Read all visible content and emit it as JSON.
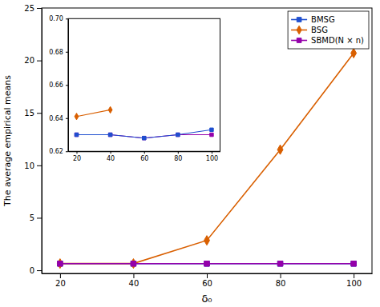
{
  "chart_data": [
    {
      "type": "line",
      "x": [
        20,
        40,
        60,
        80,
        100
      ],
      "xlabel": "δ₀",
      "ylabel": "The average empirical means",
      "xlim": [
        15,
        105
      ],
      "ylim": [
        -0.3,
        25
      ],
      "xticks": [
        20,
        40,
        60,
        80,
        100
      ],
      "yticks": [
        0,
        5,
        10,
        15,
        20,
        25
      ],
      "legend": "upper right",
      "series": [
        {
          "name": "BMSG",
          "color": "#1f4fcf",
          "marker": "square",
          "values": [
            0.63,
            0.63,
            0.63,
            0.63,
            0.63
          ]
        },
        {
          "name": "BSG",
          "color": "#d95f00",
          "marker": "diamond",
          "values": [
            0.641,
            0.645,
            2.85,
            11.5,
            20.7
          ]
        },
        {
          "name": "SBMD(N × n)",
          "color": "#9400aa",
          "marker": "square",
          "values": [
            0.63,
            0.63,
            0.63,
            0.63,
            0.63
          ]
        }
      ]
    },
    {
      "type": "line",
      "xlim": [
        15,
        105
      ],
      "ylim": [
        0.62,
        0.7
      ],
      "xticks": [
        20,
        40,
        60,
        80,
        100
      ],
      "yticks": [
        0.62,
        0.64,
        0.66,
        0.68,
        {
          "value": 0.7,
          "label": "0.70"
        }
      ],
      "series": [
        {
          "color": "#9400aa",
          "marker": "square",
          "x": [
            20,
            40,
            60,
            80,
            100
          ],
          "values": [
            0.63,
            0.63,
            0.628,
            0.63,
            0.63
          ]
        },
        {
          "color": "#1f4fcf",
          "marker": "square",
          "x": [
            20,
            40,
            60,
            80,
            100
          ],
          "values": [
            0.63,
            0.63,
            0.628,
            0.63,
            0.633
          ]
        },
        {
          "color": "#d95f00",
          "marker": "diamond",
          "x": [
            20,
            40
          ],
          "values": [
            0.641,
            0.645
          ]
        }
      ]
    }
  ]
}
